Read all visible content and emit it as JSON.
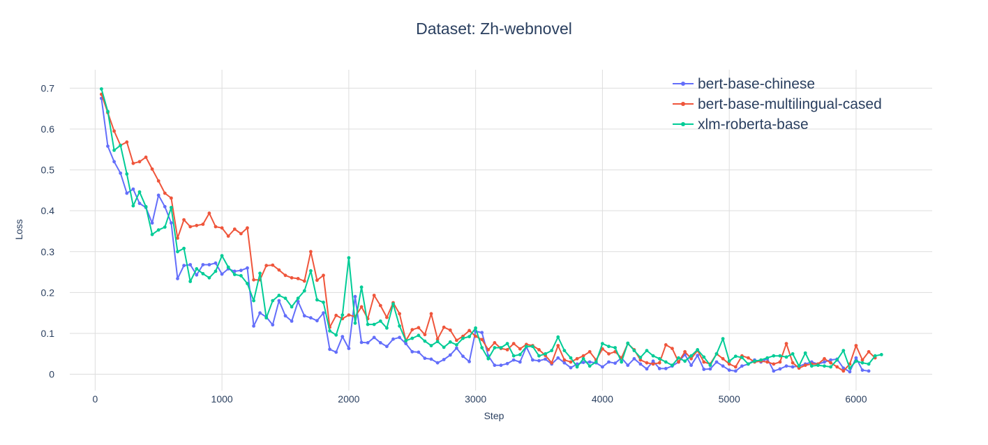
{
  "chart_data": {
    "type": "line",
    "title": "Dataset: Zh-webnovel",
    "xlabel": "Step",
    "ylabel": "Loss",
    "xlim": [
      -200,
      6600
    ],
    "ylim": [
      -0.04,
      0.745
    ],
    "x_ticks": [
      0,
      1000,
      2000,
      3000,
      4000,
      5000,
      6000
    ],
    "x_tick_labels": [
      "0",
      "1000",
      "2000",
      "3000",
      "4000",
      "5000",
      "6000"
    ],
    "y_ticks": [
      0,
      0.1,
      0.2,
      0.3,
      0.4,
      0.5,
      0.6,
      0.7
    ],
    "y_tick_labels": [
      "0",
      "0.1",
      "0.2",
      "0.3",
      "0.4",
      "0.5",
      "0.6",
      "0.7"
    ],
    "grid": true,
    "legend_position": "top-right",
    "x_step": 50,
    "series": [
      {
        "name": "bert-base-chinese",
        "color": "#636efa",
        "values": [
          0.675,
          0.558,
          0.52,
          0.492,
          0.443,
          0.453,
          0.418,
          0.408,
          0.37,
          0.438,
          0.41,
          0.37,
          0.234,
          0.266,
          0.268,
          0.243,
          0.268,
          0.268,
          0.272,
          0.245,
          0.258,
          0.252,
          0.254,
          0.26,
          0.118,
          0.15,
          0.14,
          0.121,
          0.18,
          0.143,
          0.13,
          0.178,
          0.143,
          0.138,
          0.131,
          0.15,
          0.061,
          0.054,
          0.092,
          0.063,
          0.19,
          0.078,
          0.077,
          0.09,
          0.077,
          0.068,
          0.086,
          0.09,
          0.075,
          0.055,
          0.054,
          0.039,
          0.037,
          0.028,
          0.036,
          0.047,
          0.064,
          0.044,
          0.031,
          0.105,
          0.102,
          0.045,
          0.022,
          0.022,
          0.026,
          0.035,
          0.03,
          0.067,
          0.035,
          0.033,
          0.037,
          0.025,
          0.04,
          0.028,
          0.016,
          0.025,
          0.029,
          0.03,
          0.028,
          0.018,
          0.03,
          0.027,
          0.04,
          0.022,
          0.038,
          0.025,
          0.013,
          0.032,
          0.014,
          0.014,
          0.02,
          0.03,
          0.048,
          0.022,
          0.046,
          0.012,
          0.013,
          0.03,
          0.02,
          0.01,
          0.008,
          0.02,
          0.025,
          0.035,
          0.03,
          0.038,
          0.008,
          0.013,
          0.02,
          0.018,
          0.02,
          0.025,
          0.03,
          0.025,
          0.03,
          0.035,
          0.037,
          0.015,
          0.006,
          0.04,
          0.01,
          0.008
        ]
      },
      {
        "name": "bert-base-multilingual-cased",
        "color": "#ef553b",
        "values": [
          0.685,
          0.64,
          0.595,
          0.56,
          0.568,
          0.516,
          0.52,
          0.531,
          0.502,
          0.473,
          0.443,
          0.431,
          0.333,
          0.378,
          0.361,
          0.364,
          0.367,
          0.394,
          0.361,
          0.358,
          0.338,
          0.355,
          0.344,
          0.358,
          0.231,
          0.231,
          0.266,
          0.267,
          0.255,
          0.242,
          0.236,
          0.234,
          0.228,
          0.3,
          0.23,
          0.242,
          0.115,
          0.144,
          0.136,
          0.145,
          0.141,
          0.165,
          0.136,
          0.193,
          0.168,
          0.139,
          0.175,
          0.148,
          0.082,
          0.109,
          0.114,
          0.097,
          0.148,
          0.086,
          0.115,
          0.108,
          0.083,
          0.093,
          0.107,
          0.093,
          0.085,
          0.06,
          0.077,
          0.063,
          0.06,
          0.075,
          0.062,
          0.073,
          0.07,
          0.06,
          0.046,
          0.028,
          0.07,
          0.035,
          0.03,
          0.038,
          0.045,
          0.055,
          0.035,
          0.062,
          0.05,
          0.055,
          0.04,
          0.075,
          0.06,
          0.035,
          0.028,
          0.025,
          0.028,
          0.072,
          0.063,
          0.03,
          0.055,
          0.038,
          0.058,
          0.03,
          0.025,
          0.05,
          0.038,
          0.025,
          0.018,
          0.045,
          0.04,
          0.03,
          0.032,
          0.03,
          0.025,
          0.03,
          0.075,
          0.028,
          0.015,
          0.022,
          0.025,
          0.025,
          0.038,
          0.028,
          0.018,
          0.008,
          0.025,
          0.07,
          0.035,
          0.055,
          0.04
        ]
      },
      {
        "name": "xlm-roberta-base",
        "color": "#00cc96",
        "values": [
          0.698,
          0.643,
          0.548,
          0.56,
          0.49,
          0.412,
          0.446,
          0.41,
          0.342,
          0.353,
          0.36,
          0.408,
          0.3,
          0.308,
          0.227,
          0.258,
          0.246,
          0.236,
          0.252,
          0.29,
          0.262,
          0.244,
          0.241,
          0.222,
          0.18,
          0.247,
          0.138,
          0.18,
          0.193,
          0.186,
          0.165,
          0.186,
          0.204,
          0.253,
          0.182,
          0.176,
          0.106,
          0.096,
          0.145,
          0.285,
          0.125,
          0.213,
          0.122,
          0.122,
          0.13,
          0.113,
          0.172,
          0.118,
          0.082,
          0.088,
          0.095,
          0.081,
          0.07,
          0.08,
          0.066,
          0.079,
          0.072,
          0.088,
          0.092,
          0.113,
          0.065,
          0.038,
          0.065,
          0.065,
          0.075,
          0.045,
          0.048,
          0.068,
          0.068,
          0.045,
          0.05,
          0.058,
          0.091,
          0.058,
          0.04,
          0.018,
          0.038,
          0.02,
          0.03,
          0.075,
          0.068,
          0.065,
          0.03,
          0.076,
          0.058,
          0.041,
          0.058,
          0.045,
          0.038,
          0.03,
          0.022,
          0.04,
          0.032,
          0.045,
          0.06,
          0.042,
          0.022,
          0.05,
          0.087,
          0.032,
          0.044,
          0.041,
          0.025,
          0.032,
          0.035,
          0.04,
          0.045,
          0.045,
          0.042,
          0.05,
          0.02,
          0.052,
          0.02,
          0.022,
          0.02,
          0.018,
          0.035,
          0.058,
          0.015,
          0.032,
          0.028,
          0.025,
          0.045,
          0.048
        ]
      }
    ]
  }
}
